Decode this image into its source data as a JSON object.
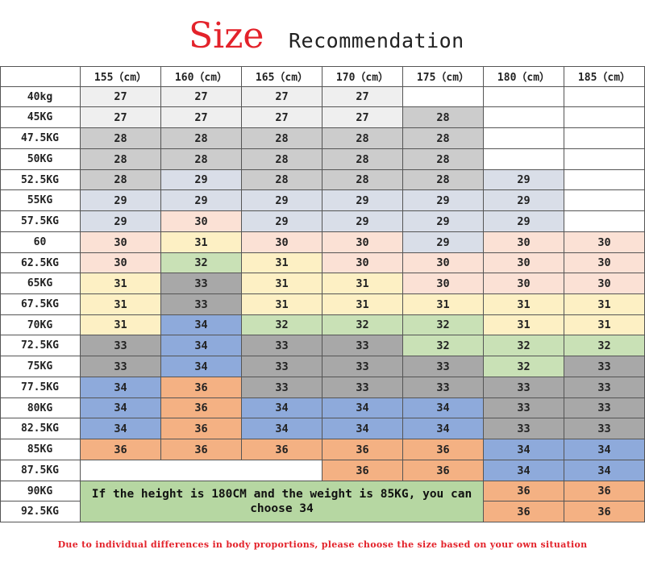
{
  "title": {
    "main": "Size",
    "sub": "Recommendation"
  },
  "heights": [
    "155（cm）",
    "160（cm）",
    "165（cm）",
    "170（cm）",
    "175（cm）",
    "180（cm）",
    "185（cm）"
  ],
  "weights": [
    "40kg",
    "45KG",
    "47.5KG",
    "50KG",
    "52.5KG",
    "55KG",
    "57.5KG",
    "60",
    "62.5KG",
    "65KG",
    "67.5KG",
    "70KG",
    "72.5KG",
    "75KG",
    "77.5KG",
    "80KG",
    "82.5KG",
    "85KG",
    "87.5KG",
    "90KG",
    "92.5KG"
  ],
  "colors": {
    "27": "#efefef",
    "28": "#cccccc",
    "29": "#d9dee8",
    "30": "#fbe1d5",
    "31": "#fdf0c4",
    "32": "#c9e1b6",
    "33": "#a8a8a8",
    "34": "#8eaadb",
    "36": "#f4b183",
    "empty": "#ffffff"
  },
  "sizes": [
    [
      "27",
      "27",
      "27",
      "27",
      "",
      "",
      ""
    ],
    [
      "27",
      "27",
      "27",
      "27",
      "28",
      "",
      ""
    ],
    [
      "28",
      "28",
      "28",
      "28",
      "28",
      "",
      ""
    ],
    [
      "28",
      "28",
      "28",
      "28",
      "28",
      "",
      ""
    ],
    [
      "28",
      "29",
      "28",
      "28",
      "28",
      "29",
      ""
    ],
    [
      "29",
      "29",
      "29",
      "29",
      "29",
      "29",
      ""
    ],
    [
      "29",
      "30",
      "29",
      "29",
      "29",
      "29",
      ""
    ],
    [
      "30",
      "31",
      "30",
      "30",
      "29",
      "30",
      "30"
    ],
    [
      "30",
      "32",
      "31",
      "30",
      "30",
      "30",
      "30"
    ],
    [
      "31",
      "33",
      "31",
      "31",
      "30",
      "30",
      "30"
    ],
    [
      "31",
      "33",
      "31",
      "31",
      "31",
      "31",
      "31"
    ],
    [
      "31",
      "34",
      "32",
      "32",
      "32",
      "31",
      "31"
    ],
    [
      "33",
      "34",
      "33",
      "33",
      "32",
      "32",
      "32"
    ],
    [
      "33",
      "34",
      "33",
      "33",
      "33",
      "32",
      "33"
    ],
    [
      "34",
      "36",
      "33",
      "33",
      "33",
      "33",
      "33"
    ],
    [
      "34",
      "36",
      "34",
      "34",
      "34",
      "33",
      "33"
    ],
    [
      "34",
      "36",
      "34",
      "34",
      "34",
      "33",
      "33"
    ],
    [
      "36",
      "36",
      "36",
      "36",
      "36",
      "34",
      "34"
    ],
    [
      "",
      "",
      "",
      "36",
      "36",
      "34",
      "34"
    ],
    [
      "",
      "",
      "",
      "",
      "",
      "36",
      "36"
    ],
    [
      "",
      "",
      "",
      "",
      "",
      "36",
      "36"
    ]
  ],
  "note": "If the height is 180CM and the weight is 85KG, you can choose 34",
  "footer": "Due to individual differences in body proportions, please choose the size based on your own situation"
}
